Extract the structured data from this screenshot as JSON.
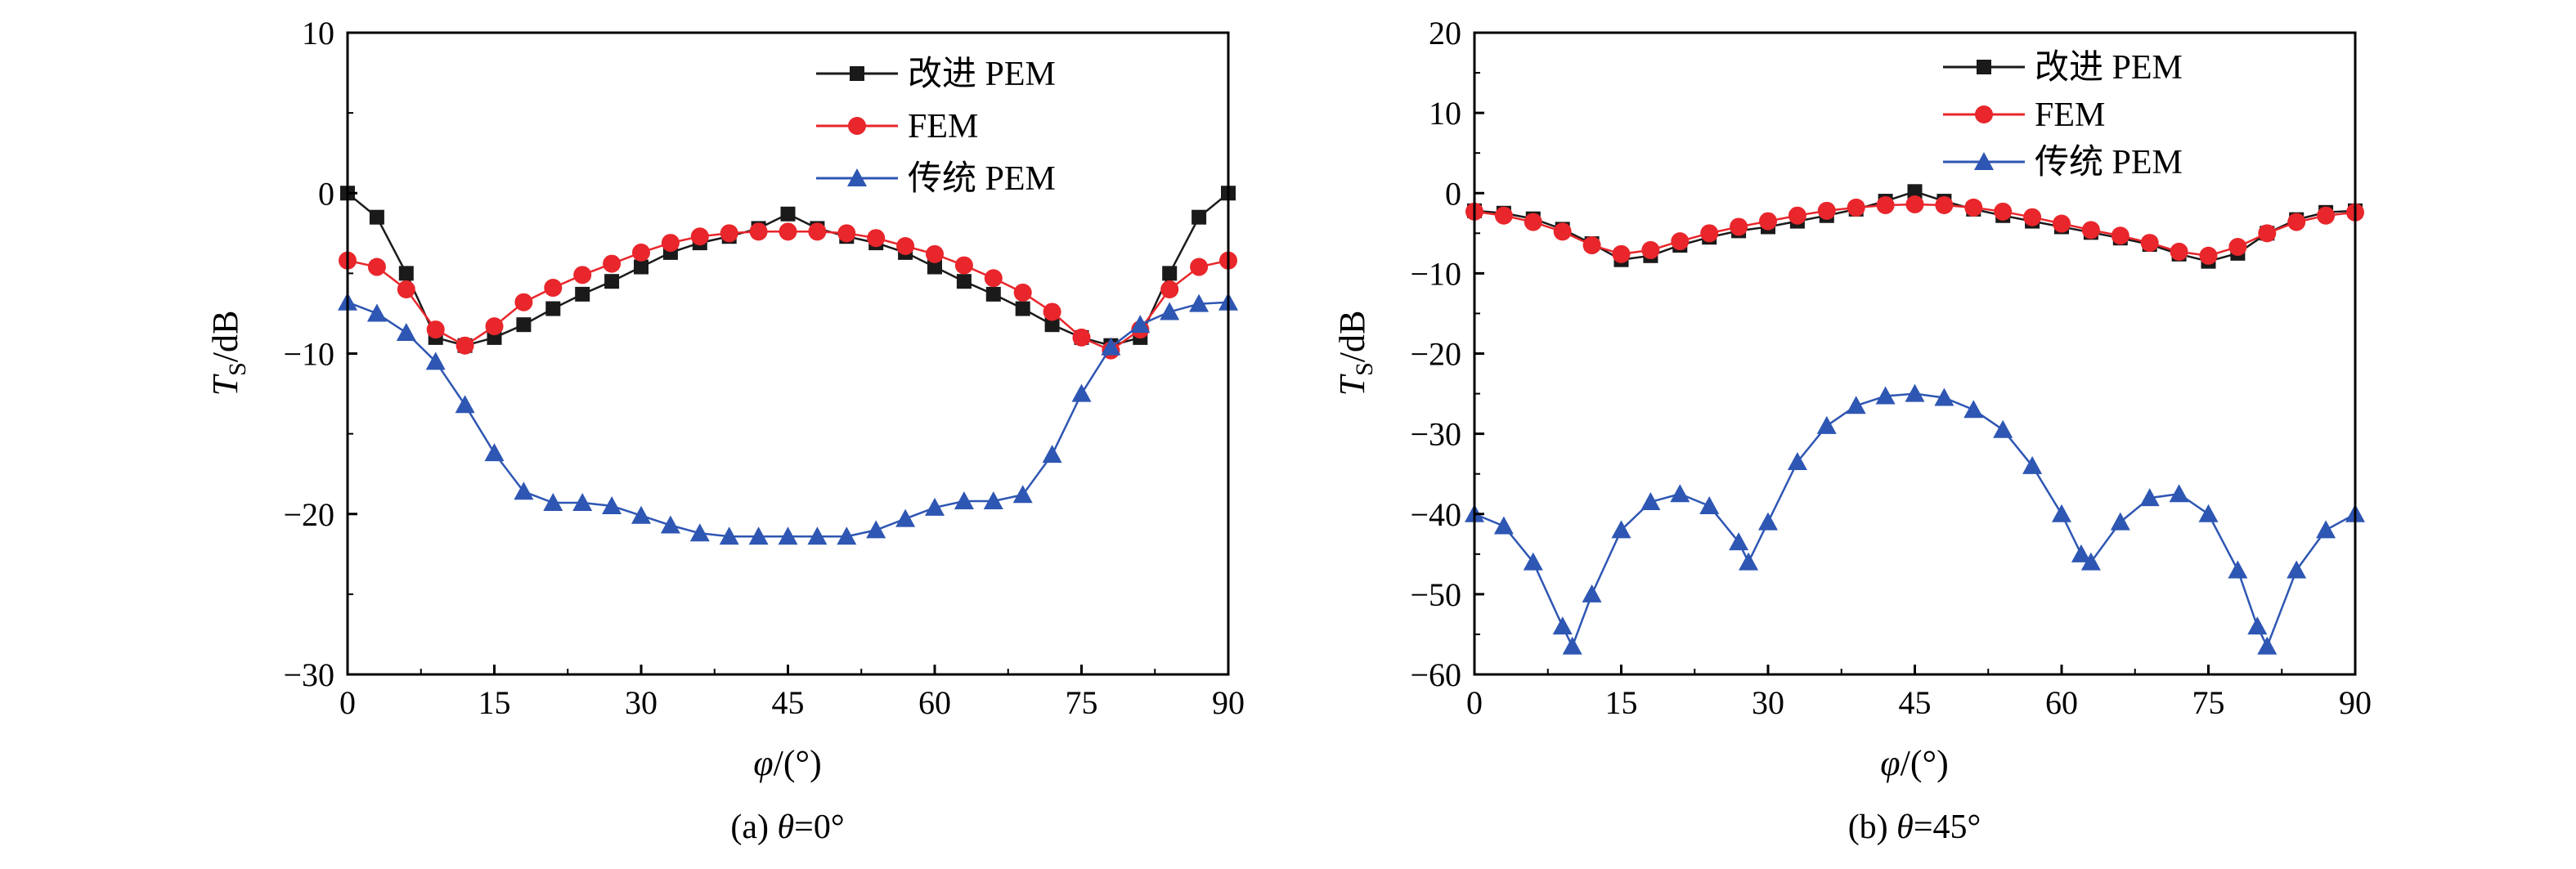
{
  "chart_data": [
    {
      "type": "line",
      "title": "",
      "caption": {
        "prefix": "(a) ",
        "var": "θ",
        "suffix": "=0°"
      },
      "xlabel": {
        "var": "φ",
        "suffix": "/(°)"
      },
      "ylabel": {
        "var": "T",
        "sub": "S",
        "suffix": "/dB"
      },
      "xlim": [
        0,
        90
      ],
      "ylim": [
        -30,
        10
      ],
      "xticks": [
        "0",
        "15",
        "30",
        "45",
        "60",
        "75",
        "90"
      ],
      "yticks": [
        "−30",
        "−20",
        "−10",
        "0",
        "10"
      ],
      "grid": false,
      "legend_position": "top-right",
      "series": [
        {
          "name": "改进 PEM",
          "color": "#1a1a1a",
          "marker": "square",
          "x": [
            0,
            3,
            6,
            9,
            12,
            15,
            18,
            21,
            24,
            27,
            30,
            33,
            36,
            39,
            42,
            45,
            48,
            51,
            54,
            57,
            60,
            63,
            66,
            69,
            72,
            75,
            78,
            81,
            84,
            87,
            90
          ],
          "y": [
            0,
            -1.5,
            -5,
            -9,
            -9.5,
            -9,
            -8.2,
            -7.2,
            -6.3,
            -5.5,
            -4.6,
            -3.7,
            -3.1,
            -2.7,
            -2.2,
            -1.3,
            -2.2,
            -2.7,
            -3.1,
            -3.7,
            -4.6,
            -5.5,
            -6.3,
            -7.2,
            -8.2,
            -9,
            -9.5,
            -9,
            -5,
            -1.5,
            0
          ]
        },
        {
          "name": "FEM",
          "color": "#e8262b",
          "marker": "circle",
          "x": [
            0,
            3,
            6,
            9,
            12,
            15,
            18,
            21,
            24,
            27,
            30,
            33,
            36,
            39,
            42,
            45,
            48,
            51,
            54,
            57,
            60,
            63,
            66,
            69,
            72,
            75,
            78,
            81,
            84,
            87,
            90
          ],
          "y": [
            -4.2,
            -4.6,
            -6,
            -8.5,
            -9.5,
            -8.3,
            -6.8,
            -5.9,
            -5.1,
            -4.4,
            -3.7,
            -3.1,
            -2.7,
            -2.5,
            -2.4,
            -2.4,
            -2.4,
            -2.5,
            -2.8,
            -3.3,
            -3.8,
            -4.5,
            -5.3,
            -6.2,
            -7.4,
            -9,
            -9.8,
            -8.5,
            -6,
            -4.6,
            -4.2
          ]
        },
        {
          "name": "传统 PEM",
          "color": "#2e56b3",
          "marker": "triangle",
          "x": [
            0,
            3,
            6,
            9,
            12,
            15,
            18,
            21,
            24,
            27,
            30,
            33,
            36,
            39,
            42,
            45,
            48,
            51,
            54,
            57,
            60,
            63,
            66,
            69,
            72,
            75,
            78,
            81,
            84,
            87,
            90
          ],
          "y": [
            -6.8,
            -7.5,
            -8.7,
            -10.5,
            -13.2,
            -16.2,
            -18.6,
            -19.3,
            -19.3,
            -19.5,
            -20.1,
            -20.7,
            -21.2,
            -21.4,
            -21.4,
            -21.4,
            -21.4,
            -21.4,
            -21,
            -20.3,
            -19.6,
            -19.2,
            -19.2,
            -18.8,
            -16.3,
            -12.5,
            -9.6,
            -8.2,
            -7.4,
            -6.9,
            -6.8
          ]
        }
      ]
    },
    {
      "type": "line",
      "title": "",
      "caption": {
        "prefix": "(b) ",
        "var": "θ",
        "suffix": "=45°"
      },
      "xlabel": {
        "var": "φ",
        "suffix": "/(°)"
      },
      "ylabel": {
        "var": "T",
        "sub": "S",
        "suffix": "/dB"
      },
      "xlim": [
        0,
        90
      ],
      "ylim": [
        -60,
        20
      ],
      "xticks": [
        "0",
        "15",
        "30",
        "45",
        "60",
        "75",
        "90"
      ],
      "yticks": [
        "−60",
        "−50",
        "−40",
        "−30",
        "−20",
        "−10",
        "0",
        "10",
        "20"
      ],
      "grid": false,
      "legend_position": "top-right",
      "series": [
        {
          "name": "改进 PEM",
          "color": "#1a1a1a",
          "marker": "square",
          "x": [
            0,
            3,
            6,
            9,
            12,
            15,
            18,
            21,
            24,
            27,
            30,
            33,
            36,
            39,
            42,
            45,
            48,
            51,
            54,
            57,
            60,
            63,
            66,
            69,
            72,
            75,
            78,
            81,
            84,
            87,
            90
          ],
          "y": [
            -2.2,
            -2.5,
            -3.2,
            -4.5,
            -6.3,
            -8.3,
            -7.8,
            -6.5,
            -5.5,
            -4.7,
            -4.2,
            -3.5,
            -2.8,
            -2,
            -1,
            0.2,
            -1,
            -2,
            -2.8,
            -3.5,
            -4.2,
            -4.9,
            -5.6,
            -6.4,
            -7.6,
            -8.5,
            -7.5,
            -5,
            -3.3,
            -2.4,
            -2.2
          ]
        },
        {
          "name": "FEM",
          "color": "#e8262b",
          "marker": "circle",
          "x": [
            0,
            3,
            6,
            9,
            12,
            15,
            18,
            21,
            24,
            27,
            30,
            33,
            36,
            39,
            42,
            45,
            48,
            51,
            54,
            57,
            60,
            63,
            66,
            69,
            72,
            75,
            78,
            81,
            84,
            87,
            90
          ],
          "y": [
            -2.3,
            -2.8,
            -3.6,
            -4.8,
            -6.5,
            -7.6,
            -7.1,
            -6,
            -5,
            -4.2,
            -3.5,
            -2.8,
            -2.2,
            -1.8,
            -1.5,
            -1.4,
            -1.5,
            -1.8,
            -2.3,
            -3,
            -3.8,
            -4.6,
            -5.3,
            -6.2,
            -7.3,
            -7.8,
            -6.7,
            -5,
            -3.6,
            -2.8,
            -2.4
          ]
        },
        {
          "name": "传统 PEM",
          "color": "#2e56b3",
          "marker": "triangle",
          "x": [
            0,
            3,
            6,
            9,
            10,
            12,
            15,
            18,
            21,
            24,
            27,
            28,
            30,
            33,
            36,
            39,
            42,
            45,
            48,
            51,
            54,
            57,
            60,
            62,
            63,
            66,
            69,
            72,
            75,
            78,
            80,
            81,
            84,
            87,
            90
          ],
          "y": [
            -40,
            -41.5,
            -46,
            -54,
            -56.5,
            -50,
            -42,
            -38.5,
            -37.5,
            -39,
            -43.5,
            -46,
            -41,
            -33.5,
            -29,
            -26.5,
            -25.3,
            -25,
            -25.5,
            -27,
            -29.5,
            -34,
            -40,
            -45,
            -46,
            -41,
            -38,
            -37.5,
            -40,
            -47,
            -54,
            -56.5,
            -47,
            -42,
            -40
          ]
        }
      ]
    }
  ]
}
